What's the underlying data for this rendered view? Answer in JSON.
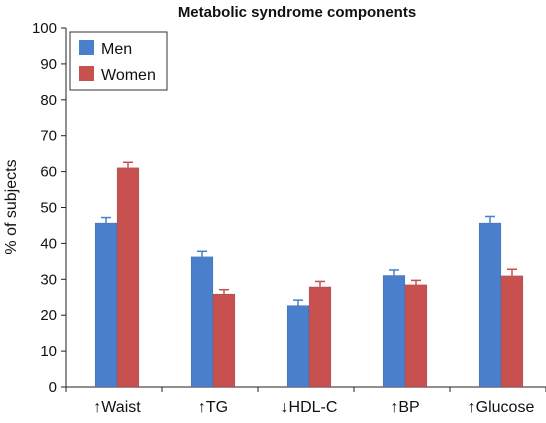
{
  "chart_data": {
    "type": "bar",
    "title": "Metabolic syndrome components",
    "xlabel": "",
    "ylabel": "% of subjects",
    "ylim": [
      0,
      100
    ],
    "yticks": [
      0,
      10,
      20,
      30,
      40,
      50,
      60,
      70,
      80,
      90,
      100
    ],
    "categories": [
      "↑Waist",
      "↑TG",
      "↓HDL-C",
      "↑BP",
      "↑Glucose"
    ],
    "series": [
      {
        "name": "Men",
        "color": "#4a7fcc",
        "values": [
          45.7,
          36.3,
          22.7,
          31.1,
          45.7
        ],
        "errors": [
          1.5,
          1.5,
          1.5,
          1.5,
          1.8
        ]
      },
      {
        "name": "Women",
        "color": "#c8504e",
        "values": [
          61.1,
          25.9,
          27.9,
          28.5,
          31.0
        ],
        "errors": [
          1.5,
          1.2,
          1.5,
          1.2,
          1.8
        ]
      }
    ],
    "legend": {
      "position": "top-left"
    },
    "grid": false,
    "error_bars": true
  }
}
